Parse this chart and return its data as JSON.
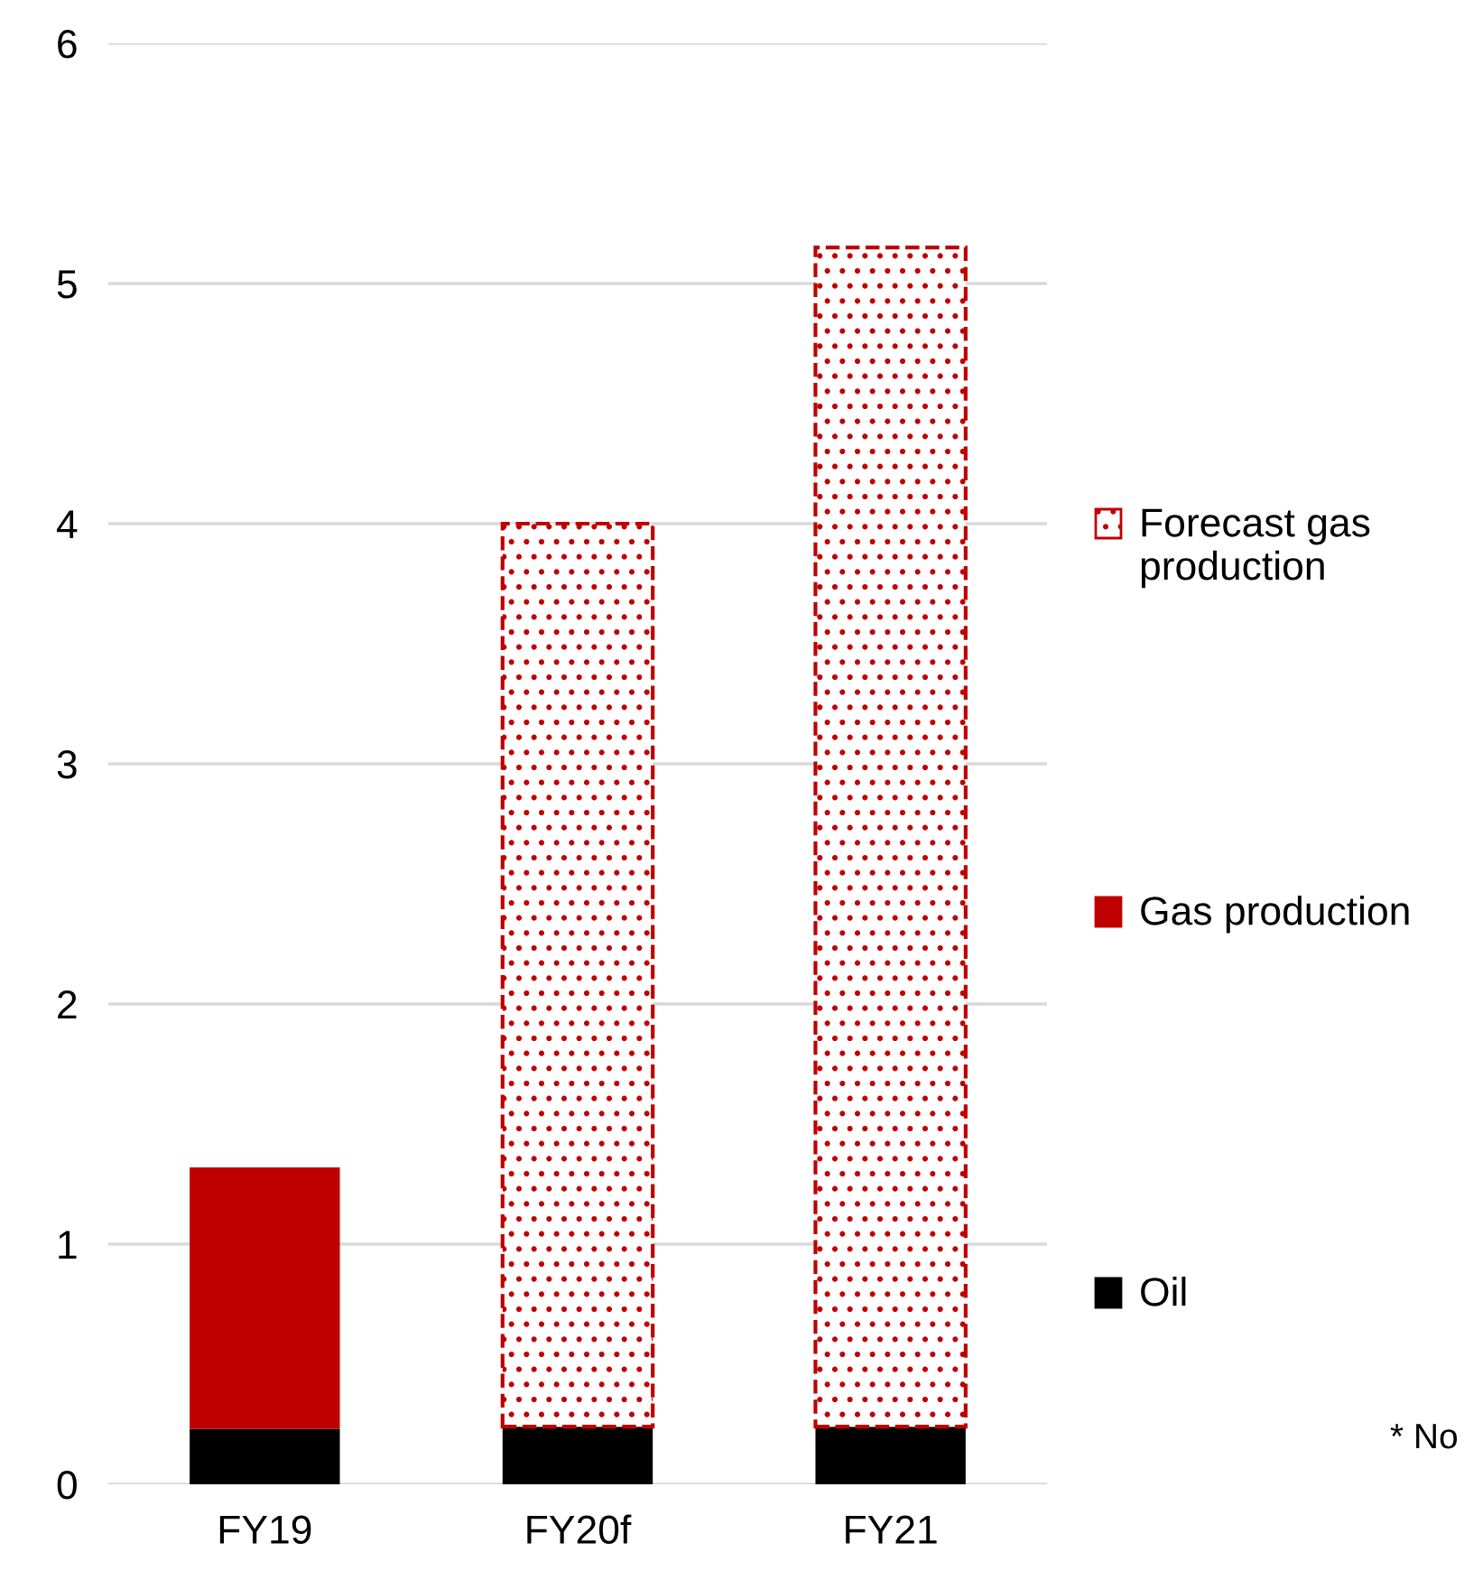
{
  "chart_data": {
    "type": "bar",
    "stacked": true,
    "categories": [
      "FY19",
      "FY20f",
      "FY21"
    ],
    "series": [
      {
        "name": "Oil",
        "color": "#000000",
        "values": [
          0.23,
          0.24,
          0.24
        ]
      },
      {
        "name": "Gas production",
        "color": "#c00000",
        "values": [
          1.09,
          null,
          null
        ]
      },
      {
        "name": "Forecast gas production",
        "color": "#c00000",
        "line_style": "dashed",
        "values": [
          null,
          3.76,
          4.91
        ]
      }
    ],
    "ylim": [
      0,
      6
    ],
    "yticks": [
      0,
      1,
      2,
      3,
      4,
      5,
      6
    ],
    "grid": "y",
    "legend": "right",
    "annotations": [
      "* No"
    ]
  }
}
